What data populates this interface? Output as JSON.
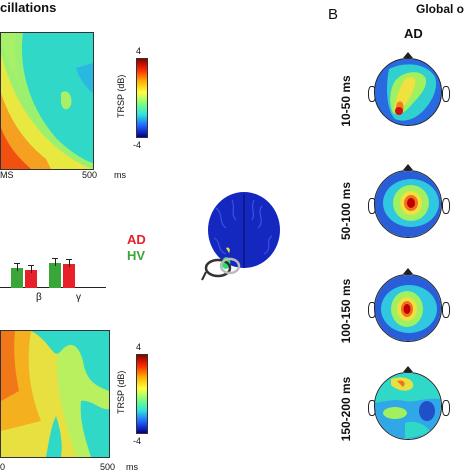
{
  "panel_a": {
    "title_fragment": "cillations",
    "heatmap_top": {
      "x_start_label": "MS",
      "x_end_label": "500",
      "x_unit": "ms"
    },
    "heatmap_bottom": {
      "x_start_label": "0",
      "x_end_label": "500",
      "x_unit": "ms"
    },
    "colorbar": {
      "max_label": "4",
      "min_label": "-4",
      "axis_label": "TRSP (dB)"
    },
    "bar_chart": {
      "categories": [
        "β",
        "γ"
      ],
      "legend": [
        {
          "label": "AD",
          "color": "#e8202a"
        },
        {
          "label": "HV",
          "color": "#3aa63a"
        }
      ]
    }
  },
  "panel_b": {
    "letter": "B",
    "title_fragment": "Global o",
    "group_label": "AD",
    "rows": [
      {
        "label": "10-50 ms"
      },
      {
        "label": "50-100 ms"
      },
      {
        "label": "100-150 ms"
      },
      {
        "label": "150-200 ms"
      }
    ]
  },
  "chart_data": {
    "type": "bar",
    "categories": [
      "β",
      "γ"
    ],
    "series": [
      {
        "name": "HV",
        "values": [
          0.55,
          0.7
        ]
      },
      {
        "name": "AD",
        "values": [
          0.5,
          0.66
        ]
      }
    ],
    "legend_placement": "right"
  }
}
